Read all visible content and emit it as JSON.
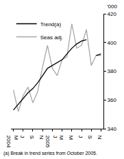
{
  "chart_data": {
    "type": "line",
    "y_label": "'000",
    "note": "(a) Break in trend series from October 2005.",
    "categories": [
      "M\n2004",
      null,
      "J",
      null,
      "S",
      null,
      "N",
      null,
      "J\n2005",
      null,
      "M",
      null,
      "M",
      null,
      "J",
      null,
      "S",
      null,
      "N"
    ],
    "series": [
      {
        "name": "Trend(a)",
        "color": "#000000",
        "values": [
          353,
          357,
          361,
          365,
          368,
          372,
          377,
          382,
          384,
          386,
          388,
          392,
          396,
          399,
          401,
          402,
          null,
          391,
          392
        ]
      },
      {
        "name": "Seas adj.",
        "color": "#a8a8a8",
        "values": [
          367,
          352,
          363,
          369,
          358,
          366,
          383,
          398,
          382,
          377,
          388,
          390,
          413,
          396,
          398,
          409,
          384,
          391,
          391
        ]
      }
    ],
    "ylim": [
      340,
      420
    ],
    "yticks": [
      340,
      360,
      380,
      400,
      420
    ],
    "grid": false,
    "legend": "top-left"
  }
}
